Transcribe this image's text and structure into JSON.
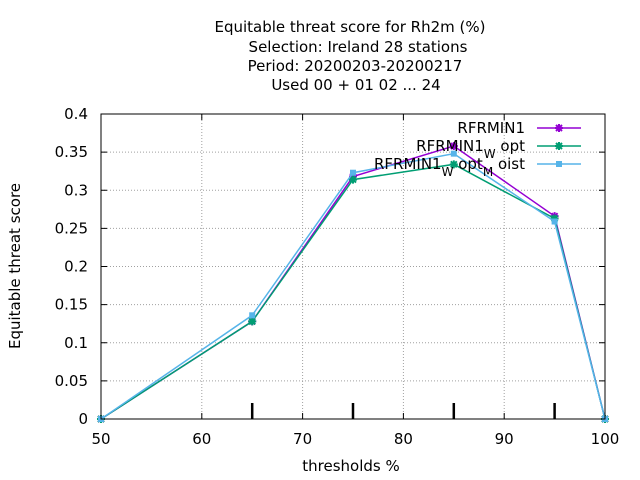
{
  "chart_data": {
    "type": "line",
    "title_lines": [
      "Equitable threat score  for Rh2m (%)",
      "Selection: Ireland     28 stations",
      "Period: 20200203-20200217",
      "Used  00 + 01 02 ... 24"
    ],
    "xlabel": "thresholds %",
    "ylabel": "Equitable threat score",
    "xlim": [
      50,
      100
    ],
    "ylim": [
      0,
      0.4
    ],
    "x_ticks": [
      "50",
      "60",
      "70",
      "80",
      "90",
      "100"
    ],
    "y_ticks": [
      "0",
      "0.05",
      "0.1",
      "0.15",
      "0.2",
      "0.25",
      "0.3",
      "0.35",
      "0.4"
    ],
    "grid": true,
    "legend_position": "top-right",
    "threshold_markers": [
      65,
      75,
      85,
      95
    ],
    "x": [
      50,
      65,
      75,
      85,
      95,
      100
    ],
    "series": [
      {
        "name": "RFRMIN1",
        "legend_base": "RFRMIN1",
        "legend_sub": "",
        "legend_suffix": "",
        "color": "#9400d3",
        "marker": "plus-star",
        "values": [
          0,
          0.128,
          0.318,
          0.358,
          0.266,
          0
        ]
      },
      {
        "name": "RFRMIN1_W opt",
        "legend_base": "RFRMIN1",
        "legend_sub": "W",
        "legend_suffix": " opt",
        "color": "#009e73",
        "marker": "star",
        "values": [
          0,
          0.128,
          0.314,
          0.334,
          0.263,
          0
        ]
      },
      {
        "name": "RFRMIN1_W opt_M oist",
        "legend_base": "RFRMIN1",
        "legend_sub": "W",
        "legend_suffix": " opt",
        "legend_sub2": "M",
        "legend_suffix2": " oist",
        "color": "#56b4e9",
        "marker": "box",
        "values": [
          0,
          0.136,
          0.323,
          0.348,
          0.259,
          0
        ]
      }
    ]
  }
}
